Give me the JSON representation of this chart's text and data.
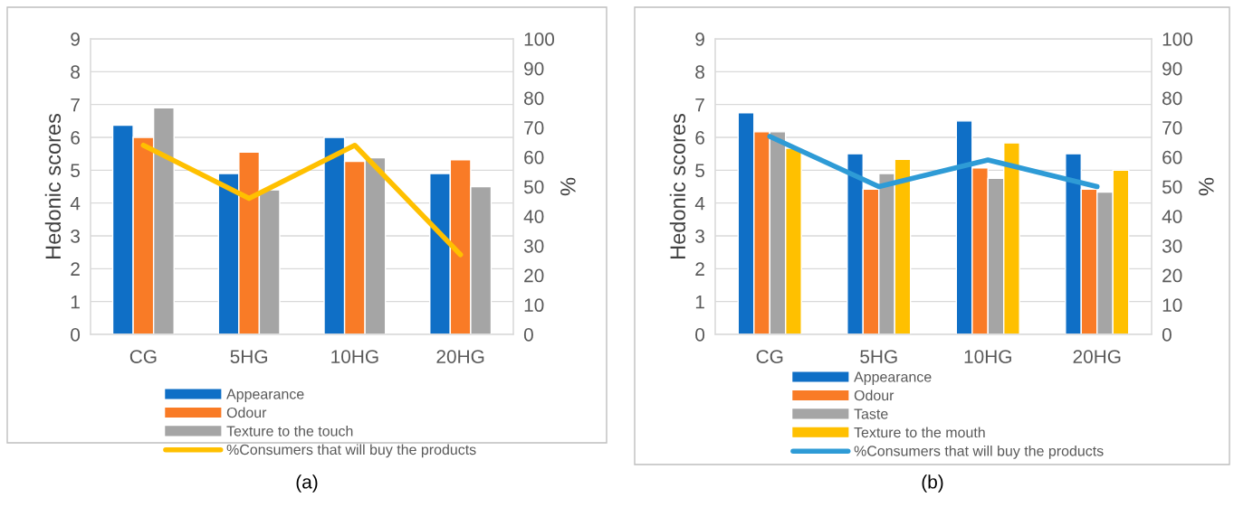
{
  "chart_data": [
    {
      "type": "bar",
      "ylabel": "Hedonic scores",
      "y2label": "%",
      "categories": [
        "CG",
        "5HG",
        "10HG",
        "20HG"
      ],
      "series": [
        {
          "name": "Appearance",
          "color": "#0f6fc6",
          "values": [
            6.37,
            4.9,
            6.0,
            4.9
          ]
        },
        {
          "name": "Odour",
          "color": "#f97b26",
          "values": [
            6.0,
            5.55,
            5.27,
            5.32
          ]
        },
        {
          "name": "Texture to the touch",
          "color": "#a5a5a5",
          "values": [
            6.9,
            4.4,
            5.38,
            4.5
          ]
        },
        {
          "name": "%Consumers that will buy the products",
          "type": "line",
          "axis": "y2",
          "color": "#ffc000",
          "values": [
            64,
            46,
            64,
            27
          ]
        }
      ],
      "ylim": [
        0,
        9
      ],
      "yticks": [
        0,
        1,
        2,
        3,
        4,
        5,
        6,
        7,
        8,
        9
      ],
      "y2lim": [
        0,
        100
      ],
      "y2ticks": [
        0,
        10,
        20,
        30,
        40,
        50,
        60,
        70,
        80,
        90,
        100
      ],
      "grid": "y",
      "legend": "bottom",
      "annotations": [
        "(a)"
      ]
    },
    {
      "type": "bar",
      "ylabel": "Hedonic scores",
      "y2label": "%",
      "categories": [
        "CG",
        "5HG",
        "10HG",
        "20HG"
      ],
      "series": [
        {
          "name": "Appearance",
          "color": "#0f6fc6",
          "values": [
            6.75,
            5.5,
            6.5,
            5.5
          ]
        },
        {
          "name": "Odour",
          "color": "#f97b26",
          "values": [
            6.17,
            4.42,
            5.07,
            4.42
          ]
        },
        {
          "name": "Taste",
          "color": "#a5a5a5",
          "values": [
            6.17,
            4.9,
            4.75,
            4.33
          ]
        },
        {
          "name": "Texture to the mouth",
          "color": "#ffc000",
          "values": [
            5.67,
            5.33,
            5.83,
            5.0
          ]
        },
        {
          "name": "%Consumers that will buy the products",
          "type": "line",
          "axis": "y2",
          "color": "#2e9bd6",
          "values": [
            67,
            50,
            59,
            50
          ]
        }
      ],
      "ylim": [
        0,
        9
      ],
      "yticks": [
        0,
        1,
        2,
        3,
        4,
        5,
        6,
        7,
        8,
        9
      ],
      "y2lim": [
        0,
        100
      ],
      "y2ticks": [
        0,
        10,
        20,
        30,
        40,
        50,
        60,
        70,
        80,
        90,
        100
      ],
      "grid": "y",
      "legend": "bottom",
      "annotations": [
        "(b)"
      ]
    }
  ]
}
